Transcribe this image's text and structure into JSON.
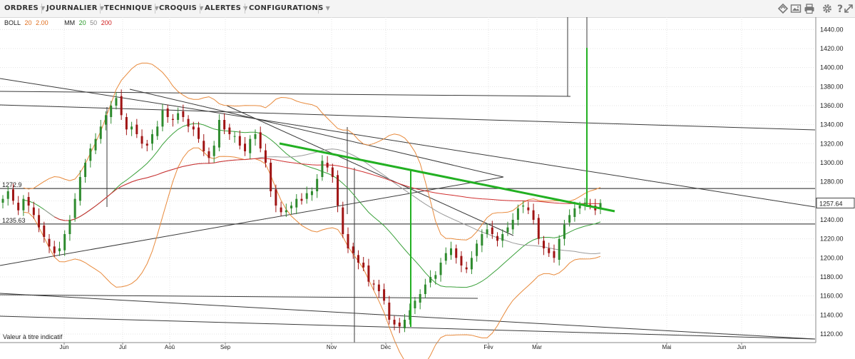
{
  "toolbar": {
    "menus": [
      "ORDRES",
      "JOURNALIER",
      "TECHNIQUE",
      "CROQUIS",
      "ALERTES",
      "CONFIGURATIONS"
    ],
    "icons": [
      "drawing-tools-icon",
      "image-icon",
      "print-icon",
      "settings-icon",
      "help-icon",
      "expand-icon"
    ]
  },
  "legend": {
    "boll_label": "BOLL",
    "boll_period": "20",
    "boll_dev": "2.00",
    "mm_label": "MM",
    "mm_fast": "20",
    "mm_mid": "50",
    "mm_slow": "200"
  },
  "disclaimer": "Valeur à titre indicatif",
  "colors": {
    "candle_up": "#2e8b2e",
    "candle_down": "#a01414",
    "bollinger": "#e88a3c",
    "ma20": "#3aa03a",
    "ma50": "#9a9a9a",
    "ma200": "#d03030",
    "trend_green": "#22b022",
    "trendline": "#333333",
    "legend_boll_params": "#e07020",
    "legend_mm20": "#2a9a2a",
    "legend_mm50": "#888888",
    "legend_mm200": "#d02020"
  },
  "chart_data": {
    "type": "candlestick",
    "y_ticks": [
      1120,
      1140,
      1160,
      1180,
      1200,
      1220,
      1240,
      1260,
      1280,
      1300,
      1320,
      1340,
      1360,
      1380,
      1400,
      1420,
      1440
    ],
    "ylim": [
      1111,
      1453
    ],
    "x_ticks": [
      "Jun",
      "Jul",
      "Aoû",
      "Sep",
      "Nov",
      "Déc",
      "Fév",
      "Mar",
      "Mai",
      "Jun"
    ],
    "price_labels": [
      {
        "text": "1257.64",
        "value": 1257.64
      }
    ],
    "level_labels": [
      {
        "text": "1272.9",
        "value": 1272.9
      },
      {
        "text": "1235.63",
        "value": 1235.63
      }
    ],
    "horizontal_levels": [
      1272.9,
      1235.63
    ],
    "closes": [
      1262,
      1270,
      1260,
      1250,
      1262,
      1255,
      1245,
      1232,
      1222,
      1212,
      1205,
      1210,
      1225,
      1240,
      1262,
      1285,
      1300,
      1315,
      1325,
      1338,
      1350,
      1360,
      1368,
      1350,
      1335,
      1338,
      1330,
      1320,
      1318,
      1330,
      1338,
      1355,
      1348,
      1345,
      1352,
      1348,
      1338,
      1335,
      1325,
      1312,
      1305,
      1318,
      1345,
      1335,
      1330,
      1328,
      1318,
      1312,
      1325,
      1330,
      1315,
      1300,
      1270,
      1255,
      1248,
      1250,
      1255,
      1262,
      1260,
      1268,
      1270,
      1283,
      1302,
      1295,
      1285,
      1255,
      1225,
      1210,
      1205,
      1195,
      1190,
      1175,
      1172,
      1165,
      1155,
      1135,
      1130,
      1128,
      1135,
      1145,
      1155,
      1162,
      1172,
      1180,
      1182,
      1195,
      1205,
      1210,
      1200,
      1192,
      1188,
      1200,
      1215,
      1225,
      1230,
      1225,
      1218,
      1225,
      1232,
      1240,
      1252,
      1255,
      1250,
      1240,
      1220,
      1210,
      1205,
      1200,
      1220,
      1235,
      1245,
      1252,
      1255,
      1258,
      1255,
      1250,
      1257.64
    ]
  }
}
